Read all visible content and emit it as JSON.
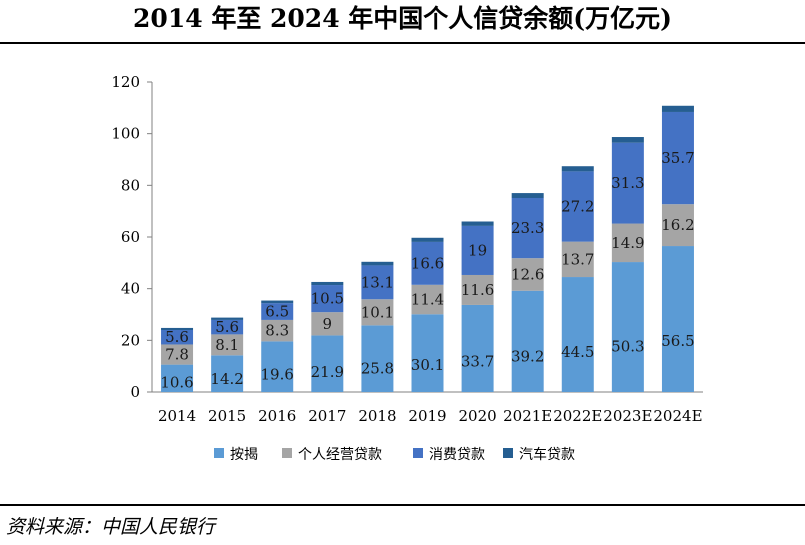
{
  "title": "2014 年至 2024 年中国个人信贷余额(万亿元)",
  "source": "资料来源：中国人民银行",
  "chart_data": {
    "type": "bar",
    "stacked": true,
    "title": "2014 年至 2024 年中国个人信贷余额(万亿元)",
    "xlabel": "",
    "ylabel": "",
    "ylim": [
      0,
      120
    ],
    "yticks": [
      0,
      20,
      40,
      60,
      80,
      100,
      120
    ],
    "categories": [
      "2014",
      "2015",
      "2016",
      "2017",
      "2018",
      "2019",
      "2020",
      "2021E",
      "2022E",
      "2023E",
      "2024E"
    ],
    "series": [
      {
        "name": "按揭",
        "color": "#5b9bd5",
        "values": [
          10.6,
          14.2,
          19.6,
          21.9,
          25.8,
          30.1,
          33.7,
          39.2,
          44.5,
          50.3,
          56.5
        ],
        "labels": [
          "10.6",
          "14.2",
          "19.6",
          "21.9",
          "25.8",
          "30.1",
          "33.7",
          "39.2",
          "44.5",
          "50.3",
          "56.5"
        ]
      },
      {
        "name": "个人经营贷款",
        "color": "#a5a5a5",
        "values": [
          7.8,
          8.1,
          8.3,
          9,
          10.1,
          11.4,
          11.6,
          12.6,
          13.7,
          14.9,
          16.2
        ],
        "labels": [
          "7.8",
          "8.1",
          "8.3",
          "9",
          "10.1",
          "11.4",
          "11.6",
          "12.6",
          "13.7",
          "14.9",
          "16.2"
        ]
      },
      {
        "name": "消费贷款",
        "color": "#4472c4",
        "values": [
          5.6,
          5.6,
          6.5,
          10.5,
          13.1,
          16.6,
          19,
          23.3,
          27.2,
          31.3,
          35.7
        ],
        "labels": [
          "5.6",
          "5.6",
          "6.5",
          "10.5",
          "13.1",
          "16.6",
          "19",
          "23.3",
          "27.2",
          "31.3",
          "35.7"
        ]
      },
      {
        "name": "汽车贷款",
        "color": "#255e91",
        "values": [
          0.8,
          0.9,
          1.0,
          1.2,
          1.4,
          1.6,
          1.7,
          1.9,
          2.0,
          2.2,
          2.4
        ]
      }
    ],
    "legend_position": "bottom",
    "grid": false
  }
}
